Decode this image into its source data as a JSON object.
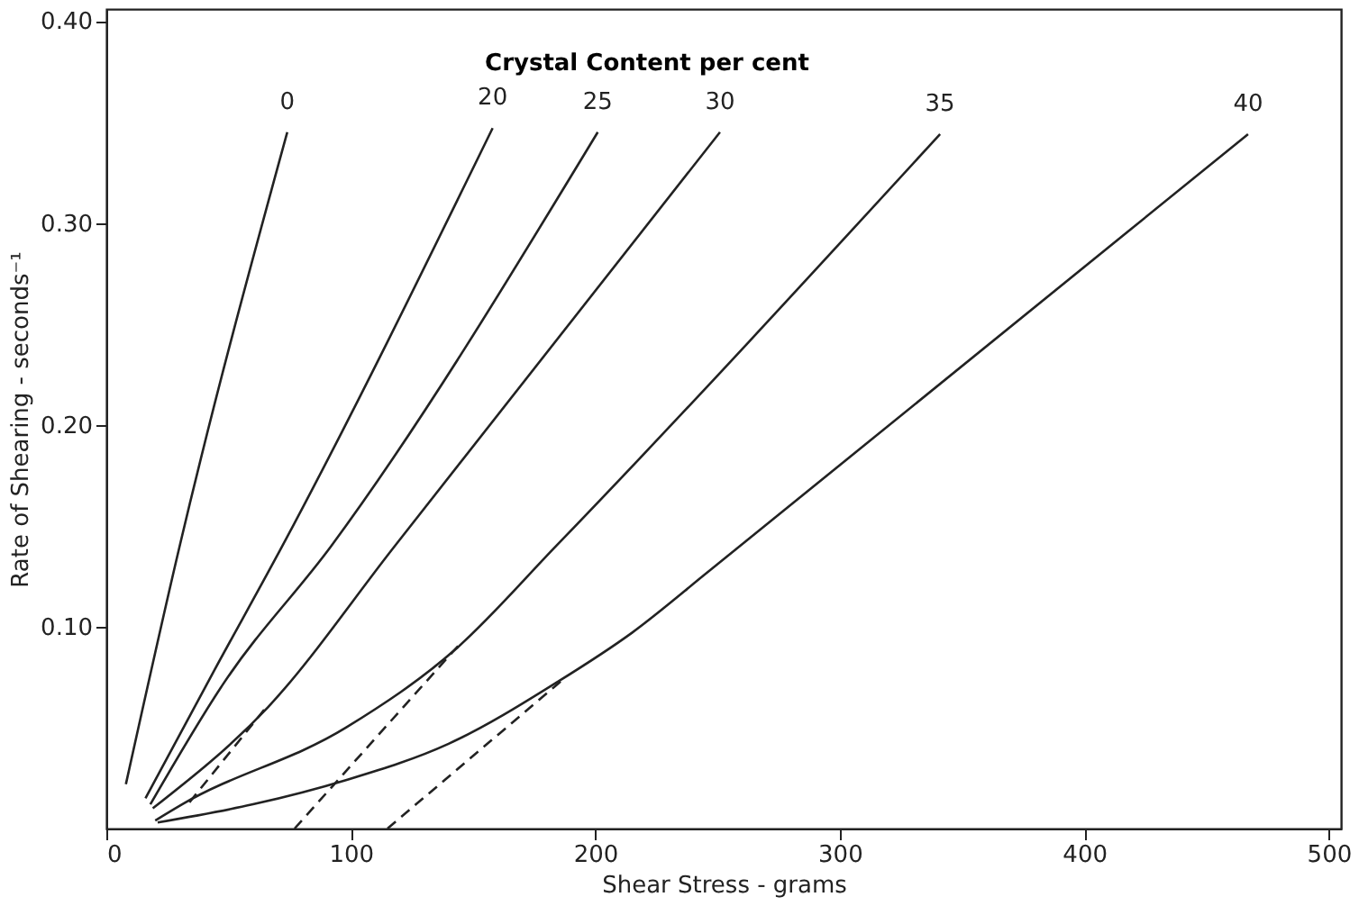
{
  "chart_data": {
    "type": "line",
    "xlabel": "Shear Stress - grams",
    "ylabel": "Rate of Shearing - seconds⁻¹",
    "annotations": [
      "Crystal Content per cent"
    ],
    "xlim": [
      0,
      505
    ],
    "ylim": [
      0,
      0.406
    ],
    "xticks": [
      0,
      100,
      200,
      300,
      400,
      500
    ],
    "yticks": [
      {
        "value": 0.1,
        "label": "0.10"
      },
      {
        "value": 0.2,
        "label": "0.20"
      },
      {
        "value": 0.3,
        "label": "0.30"
      },
      {
        "value": 0.4,
        "label": "0.40"
      }
    ],
    "grid": false,
    "marker": "none",
    "line_style": "solid",
    "series": [
      {
        "name": "0",
        "color": "#222222",
        "x": [
          8,
          30,
          74
        ],
        "values": [
          0.022,
          0.14,
          0.345
        ]
      },
      {
        "name": "20",
        "color": "#222222",
        "x": [
          16,
          44,
          72,
          158
        ],
        "values": [
          0.015,
          0.078,
          0.14,
          0.347
        ]
      },
      {
        "name": "25",
        "color": "#222222",
        "x": [
          18,
          48,
          92,
          201
        ],
        "values": [
          0.012,
          0.072,
          0.14,
          0.345
        ]
      },
      {
        "name": "30",
        "color": "#222222",
        "x": [
          19,
          66,
          118,
          251
        ],
        "values": [
          0.01,
          0.06,
          0.14,
          0.345
        ]
      },
      {
        "name": "35",
        "color": "#222222",
        "x": [
          20,
          31,
          98,
          143,
          184,
          341
        ],
        "values": [
          0.004,
          0.012,
          0.05,
          0.089,
          0.14,
          0.344
        ]
      },
      {
        "name": "40",
        "color": "#222222",
        "x": [
          21,
          60,
          98,
          140,
          185,
          215,
          247,
          467
        ],
        "values": [
          0.003,
          0.012,
          0.024,
          0.042,
          0.073,
          0.097,
          0.128,
          0.344
        ]
      },
      {
        "color": "#222222",
        "line_style": "dashed",
        "x": [
          34,
          66
        ],
        "values": [
          0.013,
          0.061
        ]
      },
      {
        "color": "#222222",
        "line_style": "dashed",
        "x": [
          77,
          145
        ],
        "values": [
          0.0,
          0.092
        ]
      },
      {
        "color": "#222222",
        "line_style": "dashed",
        "x": [
          115,
          186
        ],
        "values": [
          0.0,
          0.073
        ]
      }
    ]
  }
}
